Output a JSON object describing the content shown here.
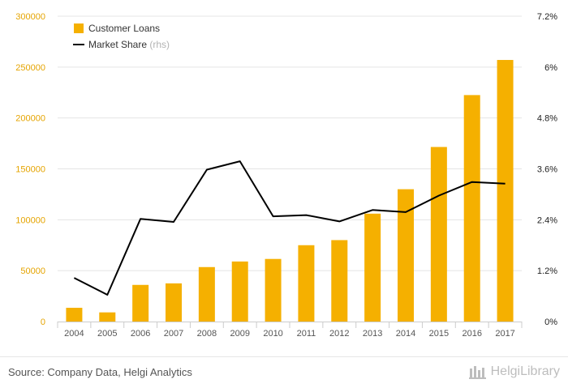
{
  "chart_data": {
    "type": "bar",
    "categories": [
      "2004",
      "2005",
      "2006",
      "2007",
      "2008",
      "2009",
      "2010",
      "2011",
      "2012",
      "2013",
      "2014",
      "2015",
      "2016",
      "2017"
    ],
    "series": [
      {
        "name": "Customer Loans",
        "type": "bar",
        "axis": "left",
        "color": "#f5b000",
        "values": [
          13500,
          9000,
          36000,
          37500,
          53500,
          59000,
          61500,
          75000,
          80000,
          106000,
          130000,
          171500,
          222500,
          257000
        ]
      },
      {
        "name": "Market Share",
        "name_suffix": "(rhs)",
        "type": "line",
        "axis": "right",
        "color": "#000000",
        "values": [
          1.03,
          0.63,
          2.42,
          2.35,
          3.58,
          3.78,
          2.48,
          2.51,
          2.36,
          2.63,
          2.58,
          2.97,
          3.29,
          3.25
        ]
      }
    ],
    "ylim_left": [
      0,
      300000
    ],
    "yticks_left": [
      "0",
      "50000",
      "100000",
      "150000",
      "200000",
      "250000",
      "300000"
    ],
    "ylim_right": [
      0,
      7.2
    ],
    "yticks_right": [
      "0%",
      "1.2%",
      "2.4%",
      "3.6%",
      "4.8%",
      "6%",
      "7.2%"
    ],
    "grid": true,
    "legend_position": "top-left"
  },
  "footer": {
    "source": "Source: Company Data, Helgi Analytics",
    "brand": "HelgiLibrary"
  }
}
